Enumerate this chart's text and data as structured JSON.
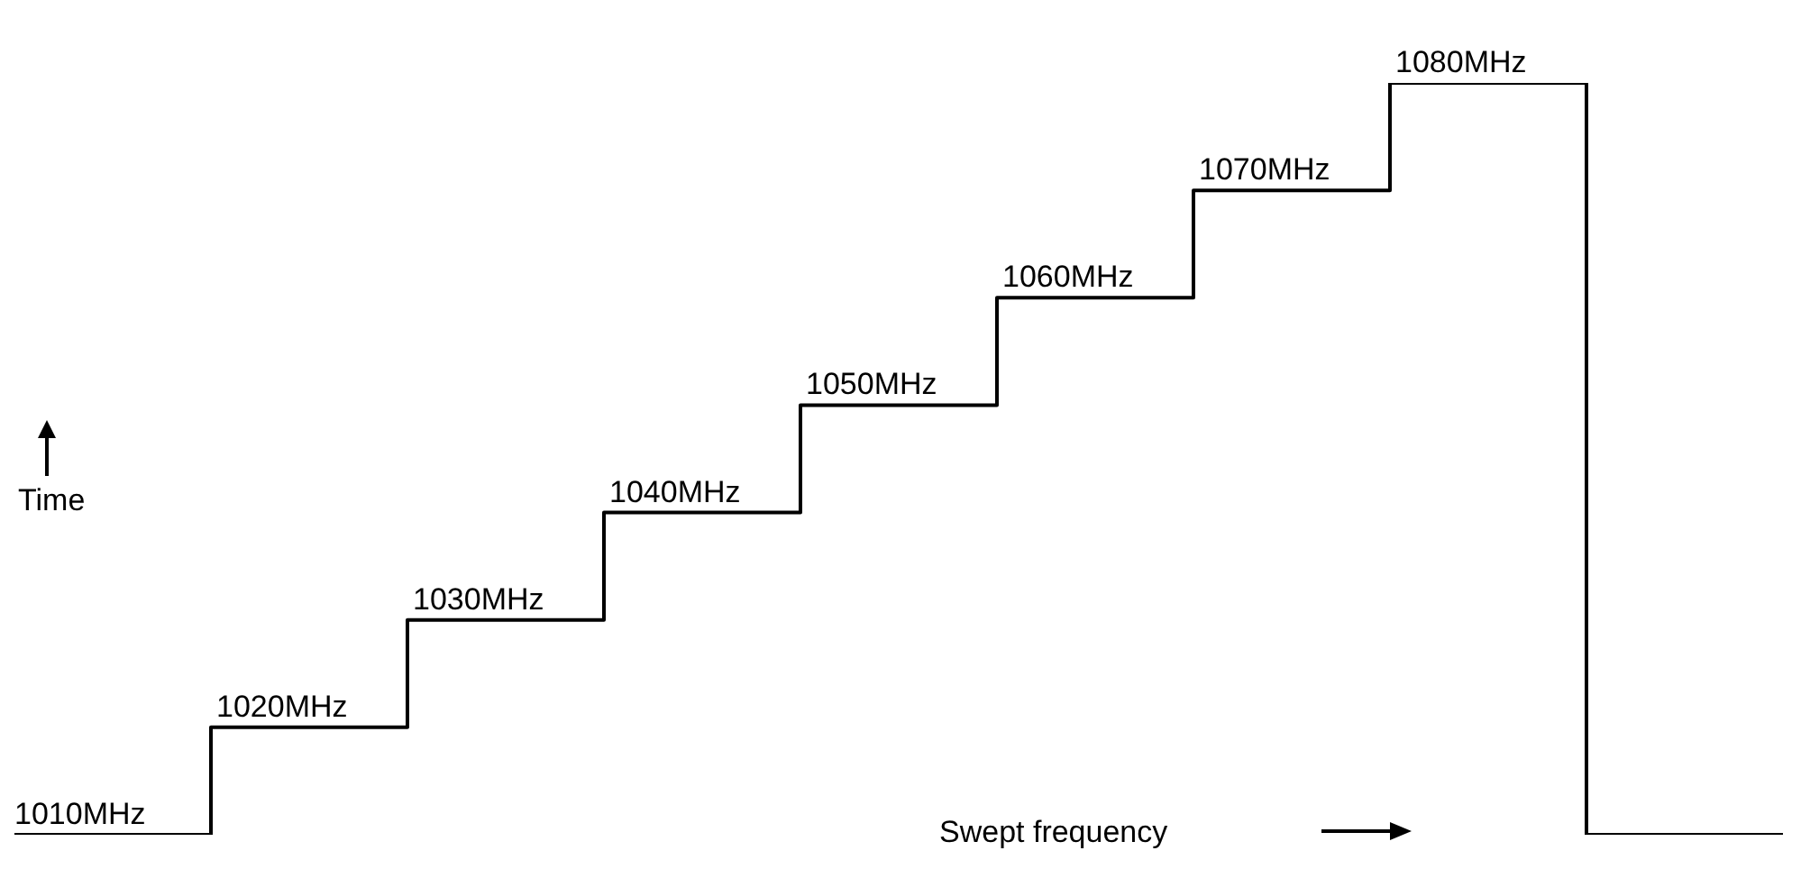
{
  "chart_data": {
    "type": "step",
    "xlabel": "Swept frequency",
    "ylabel": "Time",
    "categories": [
      null,
      null,
      null,
      null,
      null,
      null,
      null,
      null,
      null,
      null
    ],
    "series": [
      {
        "color": "#000000",
        "values": [
          1010,
          1020,
          1030,
          1040,
          1050,
          1060,
          1070,
          1080,
          1010,
          1010
        ],
        "value_labels": [
          "1010MHz",
          "1020MHz",
          "1030MHz",
          "1040MHz",
          "1050MHz",
          "1060MHz",
          "1070MHz",
          "1080MHz",
          null,
          null
        ]
      }
    ],
    "grid": false,
    "legend": false,
    "marker": "none",
    "line_style": "solid"
  }
}
